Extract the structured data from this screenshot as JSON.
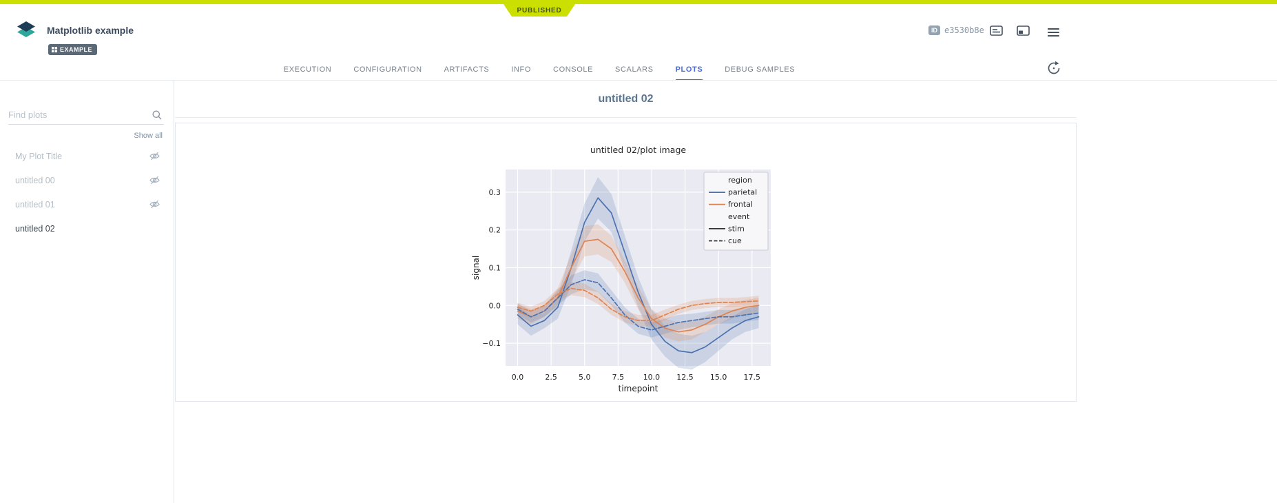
{
  "header": {
    "status": "PUBLISHED",
    "title": "Matplotlib example",
    "badge": "EXAMPLE",
    "id_label": "ID",
    "id_value": "e3530b8e"
  },
  "tabs": [
    {
      "label": "EXECUTION",
      "active": false
    },
    {
      "label": "CONFIGURATION",
      "active": false
    },
    {
      "label": "ARTIFACTS",
      "active": false
    },
    {
      "label": "INFO",
      "active": false
    },
    {
      "label": "CONSOLE",
      "active": false
    },
    {
      "label": "SCALARS",
      "active": false
    },
    {
      "label": "PLOTS",
      "active": true
    },
    {
      "label": "DEBUG SAMPLES",
      "active": false
    }
  ],
  "sidebar": {
    "search_placeholder": "Find plots",
    "show_all": "Show all",
    "items": [
      {
        "label": "My Plot Title",
        "hidden": true,
        "selected": false
      },
      {
        "label": "untitled 00",
        "hidden": true,
        "selected": false
      },
      {
        "label": "untitled 01",
        "hidden": true,
        "selected": false
      },
      {
        "label": "untitled 02",
        "hidden": false,
        "selected": true
      }
    ]
  },
  "main": {
    "section_title": "untitled 02"
  },
  "icons": {
    "logo": "stacked-layers",
    "search": "magnifier",
    "hidden_plot": "eye-off",
    "details": "text-lines-box",
    "panel": "split-panel",
    "menu": "hamburger",
    "auto_refresh": "circular-arrow"
  },
  "colors": {
    "published_green": "#cbdf00",
    "accent_blue": "#4a6cd9",
    "title_slate": "#3a4a5c",
    "heading_blue_gray": "#5a7690",
    "series_blue": "#4c72b0",
    "series_orange": "#dd8452"
  },
  "chart_data": {
    "type": "line",
    "title": "untitled 02/plot image",
    "xlabel": "timepoint",
    "ylabel": "signal",
    "xlim": [
      -0.9,
      18.9
    ],
    "ylim": [
      -0.16,
      0.36
    ],
    "xticks": [
      0,
      2.5,
      5,
      7.5,
      10,
      12.5,
      15,
      17.5
    ],
    "xtick_labels": [
      "0.0",
      "2.5",
      "5.0",
      "7.5",
      "10.0",
      "12.5",
      "15.0",
      "17.5"
    ],
    "yticks": [
      0.3,
      0.2,
      0.1,
      0.0,
      -0.1
    ],
    "ytick_labels": [
      "0.3",
      "0.2",
      "0.1",
      "0.0",
      "−0.1"
    ],
    "background": "#eaeaf2",
    "grid_color": "#ffffff",
    "text_color": "#262626",
    "grid": true,
    "legend_position": "upper right",
    "x": [
      0,
      1,
      2,
      3,
      4,
      5,
      6,
      7,
      8,
      9,
      10,
      11,
      12,
      13,
      14,
      15,
      16,
      17,
      18
    ],
    "series": [
      {
        "name": "parietal-stim",
        "region": "parietal",
        "event": "stim",
        "color": "#4c72b0",
        "dash": "solid",
        "values": [
          -0.025,
          -0.055,
          -0.04,
          -0.005,
          0.1,
          0.22,
          0.285,
          0.245,
          0.14,
          0.035,
          -0.05,
          -0.095,
          -0.12,
          -0.125,
          -0.11,
          -0.085,
          -0.06,
          -0.04,
          -0.03
        ],
        "ci": [
          0.025,
          0.025,
          0.02,
          0.03,
          0.045,
          0.05,
          0.055,
          0.05,
          0.045,
          0.04,
          0.04,
          0.04,
          0.045,
          0.045,
          0.04,
          0.035,
          0.03,
          0.03,
          0.03
        ]
      },
      {
        "name": "frontal-stim",
        "region": "frontal",
        "event": "stim",
        "color": "#dd8452",
        "dash": "solid",
        "values": [
          -0.015,
          -0.03,
          -0.015,
          0.02,
          0.1,
          0.17,
          0.175,
          0.15,
          0.09,
          0.02,
          -0.035,
          -0.06,
          -0.07,
          -0.065,
          -0.05,
          -0.03,
          -0.015,
          -0.005,
          0.0
        ],
        "ci": [
          0.02,
          0.02,
          0.015,
          0.025,
          0.035,
          0.04,
          0.04,
          0.035,
          0.03,
          0.03,
          0.025,
          0.025,
          0.025,
          0.025,
          0.02,
          0.02,
          0.02,
          0.02,
          0.02
        ]
      },
      {
        "name": "parietal-cue",
        "region": "parietal",
        "event": "cue",
        "color": "#4c72b0",
        "dash": "dashed",
        "values": [
          -0.01,
          -0.03,
          -0.015,
          0.02,
          0.055,
          0.068,
          0.06,
          0.02,
          -0.025,
          -0.055,
          -0.065,
          -0.055,
          -0.045,
          -0.04,
          -0.035,
          -0.03,
          -0.03,
          -0.025,
          -0.02
        ],
        "ci": [
          0.015,
          0.015,
          0.015,
          0.02,
          0.025,
          0.025,
          0.025,
          0.02,
          0.02,
          0.02,
          0.02,
          0.02,
          0.02,
          0.018,
          0.018,
          0.018,
          0.018,
          0.018,
          0.018
        ]
      },
      {
        "name": "frontal-cue",
        "region": "frontal",
        "event": "cue",
        "color": "#dd8452",
        "dash": "dashed",
        "values": [
          -0.005,
          -0.015,
          0.0,
          0.03,
          0.045,
          0.04,
          0.02,
          -0.01,
          -0.03,
          -0.04,
          -0.04,
          -0.025,
          -0.01,
          0.0,
          0.005,
          0.008,
          0.008,
          0.01,
          0.012
        ],
        "ci": [
          0.012,
          0.012,
          0.012,
          0.015,
          0.018,
          0.018,
          0.016,
          0.015,
          0.015,
          0.015,
          0.015,
          0.014,
          0.012,
          0.012,
          0.012,
          0.012,
          0.012,
          0.012,
          0.014
        ]
      }
    ],
    "legend": {
      "rows": [
        {
          "type": "title",
          "label": "region"
        },
        {
          "type": "entry",
          "label": "parietal",
          "color": "#4c72b0",
          "dash": "solid"
        },
        {
          "type": "entry",
          "label": "frontal",
          "color": "#dd8452",
          "dash": "solid"
        },
        {
          "type": "title",
          "label": "event"
        },
        {
          "type": "entry",
          "label": "stim",
          "color": "#333333",
          "dash": "solid"
        },
        {
          "type": "entry",
          "label": "cue",
          "color": "#333333",
          "dash": "dashed"
        }
      ]
    }
  }
}
